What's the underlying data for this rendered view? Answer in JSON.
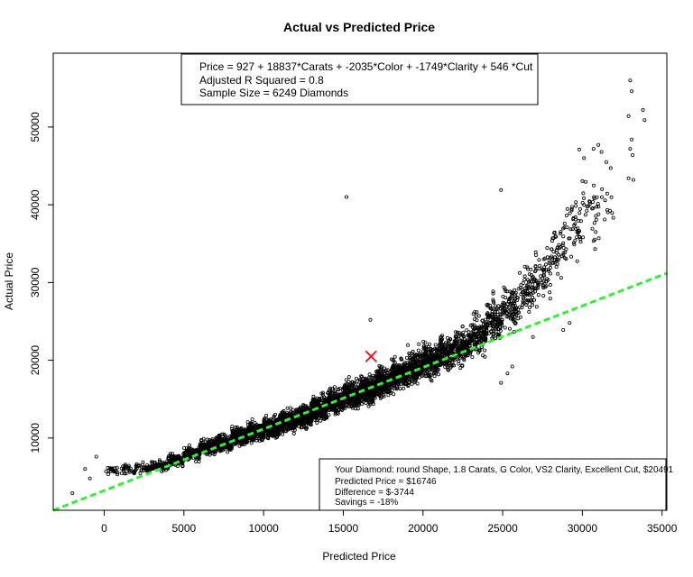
{
  "chart_data": {
    "type": "scatter",
    "title": "Actual vs Predicted Price",
    "xlabel": "Predicted Price",
    "ylabel": "Actual Price",
    "xlim": [
      -3200,
      35300
    ],
    "ylim": [
      700,
      59500
    ],
    "xticks": [
      0,
      5000,
      10000,
      15000,
      20000,
      25000,
      30000,
      35000
    ],
    "yticks": [
      10000,
      20000,
      30000,
      40000,
      50000
    ],
    "grid": false,
    "point_count": 6249,
    "fit_line": {
      "color": "#33ee33",
      "style": "dashed",
      "from": [
        -3200,
        700
      ],
      "to": [
        35300,
        31200
      ]
    },
    "highlight": {
      "marker": "x",
      "color": "#e8191b",
      "x": 16746,
      "y": 20491
    },
    "annotation_box": {
      "lines": [
        "Price = 927 + 18837*Carats + -2035*Color + -1749*Clarity + 546 *Cut",
        "Adjusted R Squared = 0.8",
        "Sample Size = 6249 Diamonds"
      ]
    },
    "info_box": {
      "lines": [
        "Your Diamond: round Shape, 1.8 Carats, G Color, VS2 Clarity, Excellent Cut, $20491",
        "Predicted Price = $16746",
        "Difference = $-3744",
        "Savings = -18%"
      ]
    },
    "outliers": [
      [
        15200,
        41000
      ],
      [
        24900,
        41900
      ],
      [
        33000,
        56000
      ],
      [
        33100,
        54600
      ],
      [
        33800,
        52200
      ],
      [
        33900,
        50900
      ],
      [
        32900,
        51400
      ],
      [
        33100,
        48400
      ],
      [
        33000,
        47200
      ],
      [
        33150,
        46400
      ],
      [
        32900,
        43400
      ],
      [
        33200,
        43200
      ],
      [
        31000,
        47700
      ],
      [
        30700,
        47200
      ],
      [
        31200,
        46800
      ],
      [
        29800,
        47100
      ],
      [
        30100,
        46000
      ],
      [
        -2000,
        2900
      ],
      [
        -500,
        7600
      ],
      [
        -1200,
        6000
      ],
      [
        -900,
        4800
      ],
      [
        28800,
        23900
      ],
      [
        29200,
        24800
      ],
      [
        25600,
        19200
      ],
      [
        25300,
        18300
      ],
      [
        24900,
        17100
      ],
      [
        26900,
        23000
      ],
      [
        16700,
        25200
      ],
      [
        30800,
        34300
      ],
      [
        31400,
        38100
      ]
    ],
    "clusters": [
      {
        "x": 500,
        "y": 5800,
        "n": 20
      },
      {
        "x": 1500,
        "y": 5900,
        "n": 30
      },
      {
        "x": 2500,
        "y": 6200,
        "n": 40
      },
      {
        "x": 3500,
        "y": 6400,
        "n": 60
      },
      {
        "x": 4500,
        "y": 7200,
        "n": 90
      },
      {
        "x": 5500,
        "y": 8000,
        "n": 120
      },
      {
        "x": 6500,
        "y": 8800,
        "n": 160
      },
      {
        "x": 7500,
        "y": 9300,
        "n": 190
      },
      {
        "x": 8500,
        "y": 10200,
        "n": 220
      },
      {
        "x": 9500,
        "y": 10800,
        "n": 240
      },
      {
        "x": 10500,
        "y": 11400,
        "n": 250
      },
      {
        "x": 11500,
        "y": 12100,
        "n": 260
      },
      {
        "x": 12500,
        "y": 12800,
        "n": 260
      },
      {
        "x": 13500,
        "y": 13800,
        "n": 260
      },
      {
        "x": 14500,
        "y": 14700,
        "n": 250
      },
      {
        "x": 15500,
        "y": 15500,
        "n": 250
      },
      {
        "x": 16500,
        "y": 16300,
        "n": 240
      },
      {
        "x": 17500,
        "y": 17100,
        "n": 230
      },
      {
        "x": 18500,
        "y": 18200,
        "n": 220
      },
      {
        "x": 19500,
        "y": 19100,
        "n": 200
      },
      {
        "x": 20500,
        "y": 19900,
        "n": 190
      },
      {
        "x": 21500,
        "y": 20900,
        "n": 170
      },
      {
        "x": 22500,
        "y": 21800,
        "n": 150
      },
      {
        "x": 23500,
        "y": 23300,
        "n": 130
      },
      {
        "x": 24500,
        "y": 25200,
        "n": 110
      },
      {
        "x": 25500,
        "y": 27000,
        "n": 90
      },
      {
        "x": 26500,
        "y": 29000,
        "n": 70
      },
      {
        "x": 27500,
        "y": 31000,
        "n": 60
      },
      {
        "x": 28500,
        "y": 34000,
        "n": 50
      },
      {
        "x": 29500,
        "y": 37000,
        "n": 40
      },
      {
        "x": 30500,
        "y": 39500,
        "n": 30
      },
      {
        "x": 31500,
        "y": 40000,
        "n": 15
      }
    ]
  }
}
